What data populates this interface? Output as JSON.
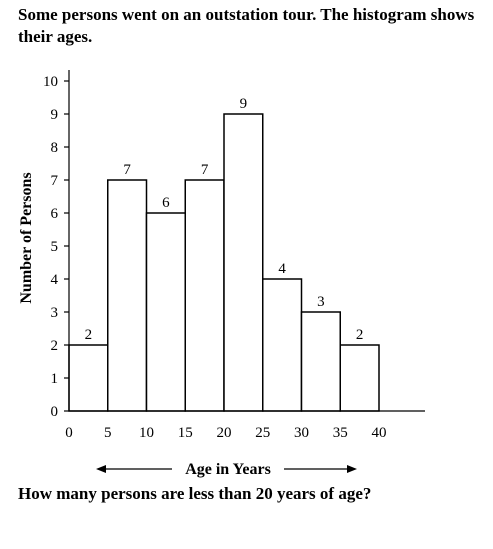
{
  "question": {
    "intro": "Some persons went on an outstation tour. The histogram shows their ages.",
    "prompt": "How many persons are less than 20 years of age?"
  },
  "chart_data": {
    "type": "bar",
    "title": "",
    "xlabel": "Age in Years",
    "ylabel": "Number of Persons",
    "x_ticks": [
      "0",
      "5",
      "10",
      "15",
      "20",
      "25",
      "30",
      "35",
      "40"
    ],
    "y_ticks": [
      "0",
      "1",
      "2",
      "3",
      "4",
      "5",
      "6",
      "7",
      "8",
      "9",
      "10"
    ],
    "xlim": [
      0,
      40
    ],
    "ylim": [
      0,
      10
    ],
    "bins": [
      {
        "from": 0,
        "to": 5,
        "value": 2
      },
      {
        "from": 5,
        "to": 10,
        "value": 7
      },
      {
        "from": 10,
        "to": 15,
        "value": 6
      },
      {
        "from": 15,
        "to": 20,
        "value": 7
      },
      {
        "from": 20,
        "to": 25,
        "value": 9
      },
      {
        "from": 25,
        "to": 30,
        "value": 4
      },
      {
        "from": 30,
        "to": 35,
        "value": 3
      },
      {
        "from": 35,
        "to": 40,
        "value": 2
      }
    ],
    "values": [
      2,
      7,
      6,
      7,
      9,
      4,
      3,
      2
    ],
    "grid": false,
    "legend": "none"
  }
}
